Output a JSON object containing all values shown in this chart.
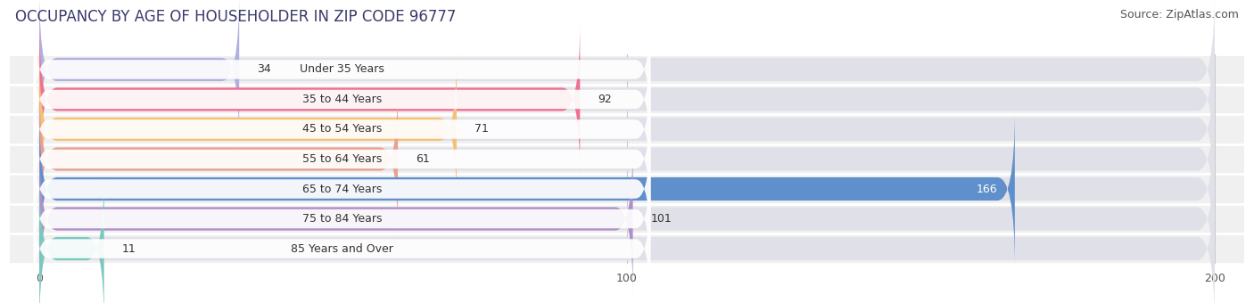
{
  "title": "OCCUPANCY BY AGE OF HOUSEHOLDER IN ZIP CODE 96777",
  "source": "Source: ZipAtlas.com",
  "categories": [
    "Under 35 Years",
    "35 to 44 Years",
    "45 to 54 Years",
    "55 to 64 Years",
    "65 to 74 Years",
    "75 to 84 Years",
    "85 Years and Over"
  ],
  "values": [
    34,
    92,
    71,
    61,
    166,
    101,
    11
  ],
  "bar_colors": [
    "#b0b0e0",
    "#f07090",
    "#f5c078",
    "#e8a090",
    "#6090cc",
    "#b090c8",
    "#7ac8c0"
  ],
  "xlim": [
    -5,
    205
  ],
  "data_xlim": [
    0,
    200
  ],
  "xticks": [
    0,
    100,
    200
  ],
  "fig_bg": "#ffffff",
  "plot_bg": "#f0f0f0",
  "bar_background_color": "#e0e0e8",
  "sep_color": "#ffffff",
  "title_fontsize": 12,
  "source_fontsize": 9,
  "label_fontsize": 9,
  "value_fontsize": 9
}
